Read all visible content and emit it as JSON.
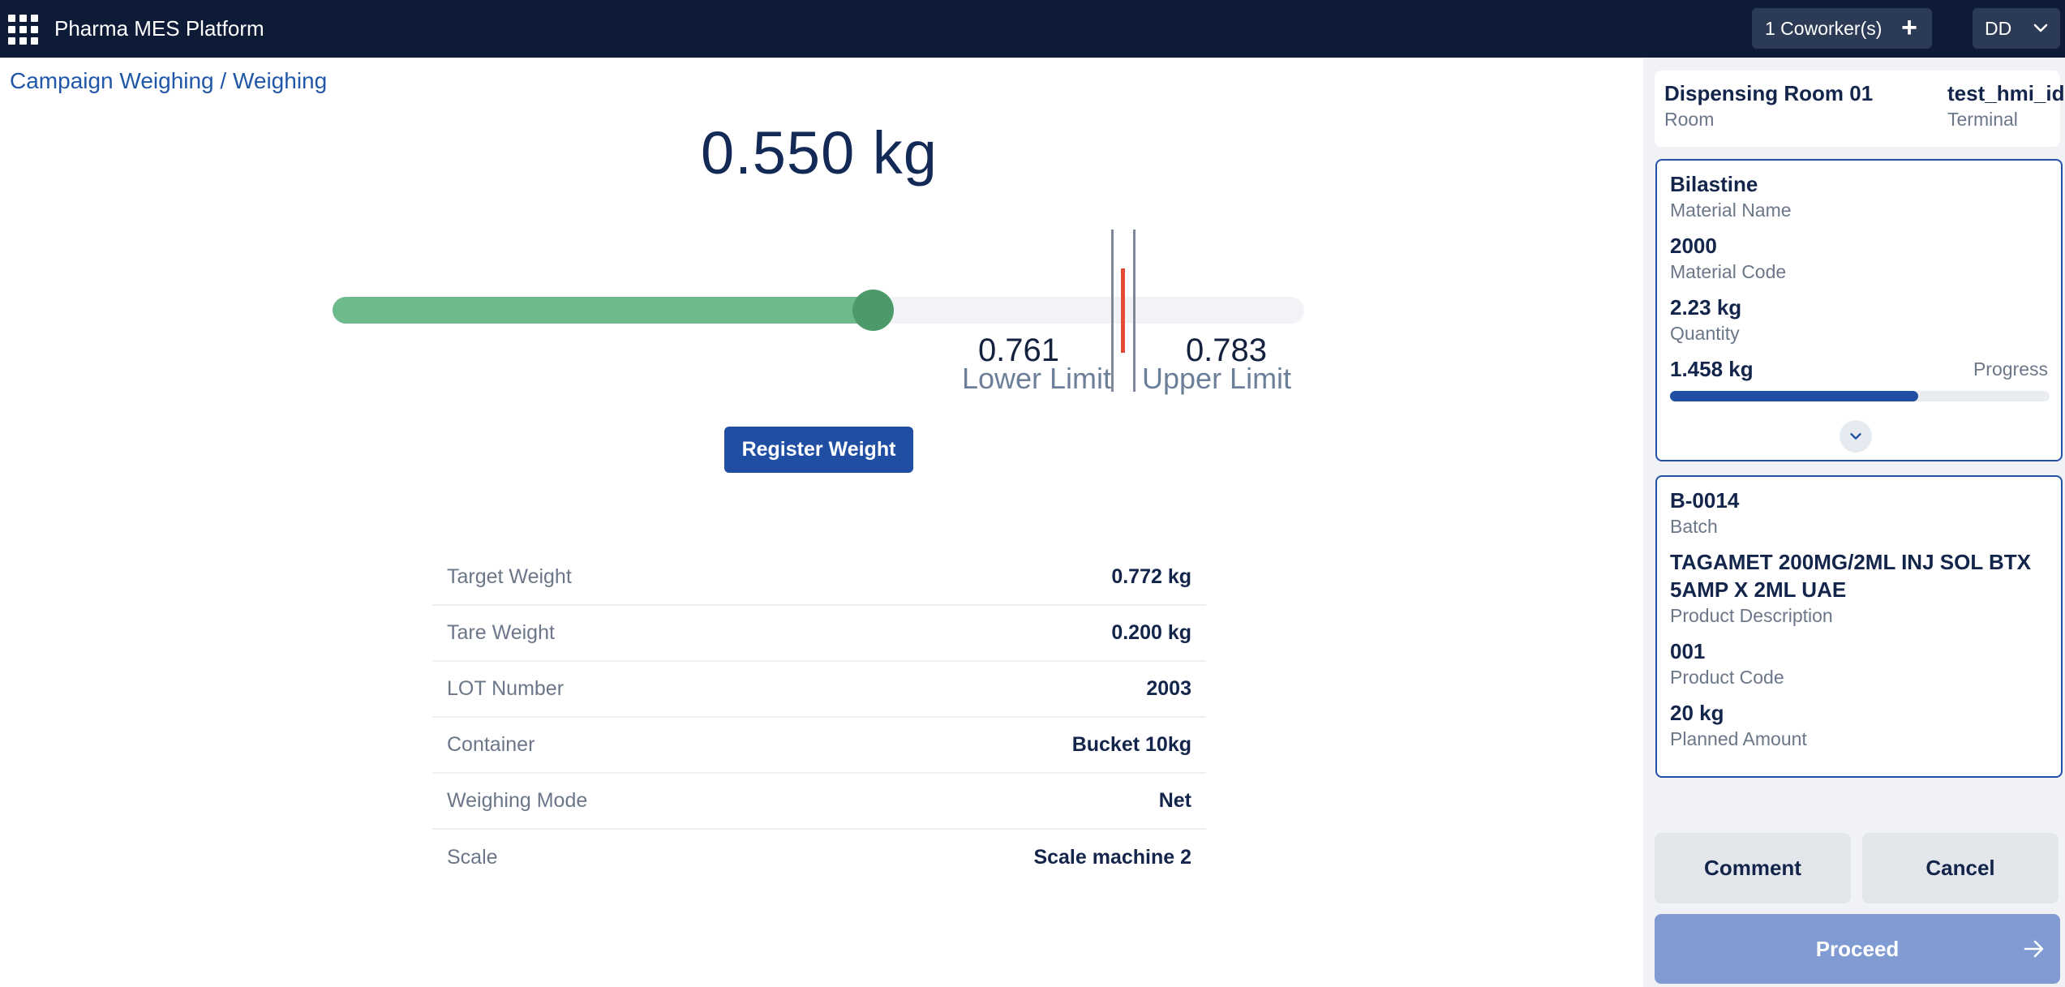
{
  "app": {
    "title": "Pharma MES Platform"
  },
  "header": {
    "coworkers_label": "1 Coworker(s)",
    "user_initials": "DD"
  },
  "breadcrumb": "Campaign Weighing / Weighing",
  "scale": {
    "current_weight": "0.550 kg",
    "current_value": 0.55,
    "lower_limit": "0.761",
    "lower_limit_label": "Lower Limit",
    "upper_limit": "0.783",
    "upper_limit_label": "Upper Limit"
  },
  "actions": {
    "register_weight": "Register Weight"
  },
  "details": [
    {
      "label": "Target Weight",
      "value": "0.772 kg"
    },
    {
      "label": "Tare Weight",
      "value": "0.200 kg"
    },
    {
      "label": "LOT Number",
      "value": "2003"
    },
    {
      "label": "Container",
      "value": "Bucket 10kg"
    },
    {
      "label": "Weighing Mode",
      "value": "Net"
    },
    {
      "label": "Scale",
      "value": "Scale machine 2"
    }
  ],
  "side": {
    "room": {
      "value": "Dispensing Room 01",
      "label": "Room"
    },
    "terminal": {
      "value": "test_hmi_id",
      "label": "Terminal"
    },
    "material": {
      "name": "Bilastine",
      "name_label": "Material Name",
      "code": "2000",
      "code_label": "Material Code",
      "quantity": "2.23 kg",
      "quantity_label": "Quantity",
      "progress_value": "1.458 kg",
      "progress_label": "Progress",
      "progress_fraction": 0.654
    },
    "batch": {
      "id": "B-0014",
      "id_label": "Batch",
      "product_description": "TAGAMET 200MG/2ML INJ SOL BTX 5AMP X 2ML UAE",
      "product_description_label": "Product Description",
      "product_code": "001",
      "product_code_label": "Product Code",
      "planned_amount": "20 kg",
      "planned_amount_label": "Planned Amount"
    },
    "buttons": {
      "comment": "Comment",
      "cancel": "Cancel",
      "proceed": "Proceed"
    }
  },
  "colors": {
    "topbar": "#0e1b36",
    "primary": "#1f4ea2",
    "fill_green": "#6dbb8c",
    "thumb_green": "#4c9a6a",
    "target_red": "#e54a38",
    "proceed_disabled": "#7f9bd2"
  },
  "icons": [
    "app-grid-icon",
    "plus-icon",
    "chevron-down-icon",
    "arrow-right-icon"
  ]
}
